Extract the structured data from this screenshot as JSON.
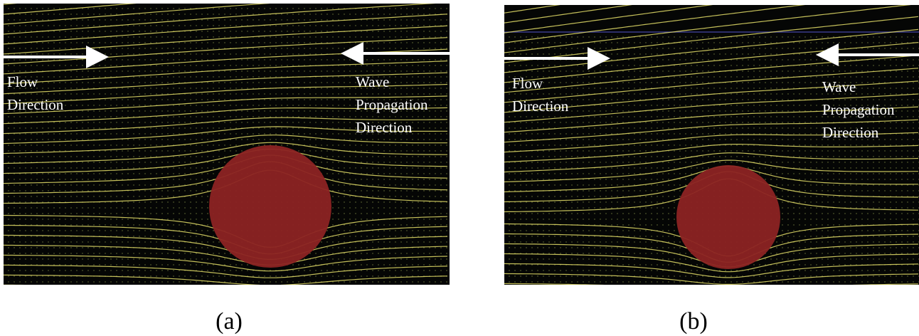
{
  "panels": [
    {
      "flow_label": [
        "Flow",
        "Direction"
      ],
      "wave_label": [
        "Wave",
        "Propagation",
        "Direction"
      ],
      "caption": "(a)"
    },
    {
      "flow_label": [
        "Flow",
        "Direction"
      ],
      "wave_label": [
        "Wave",
        "Propagation",
        "Direction"
      ],
      "caption": "(b)"
    }
  ]
}
